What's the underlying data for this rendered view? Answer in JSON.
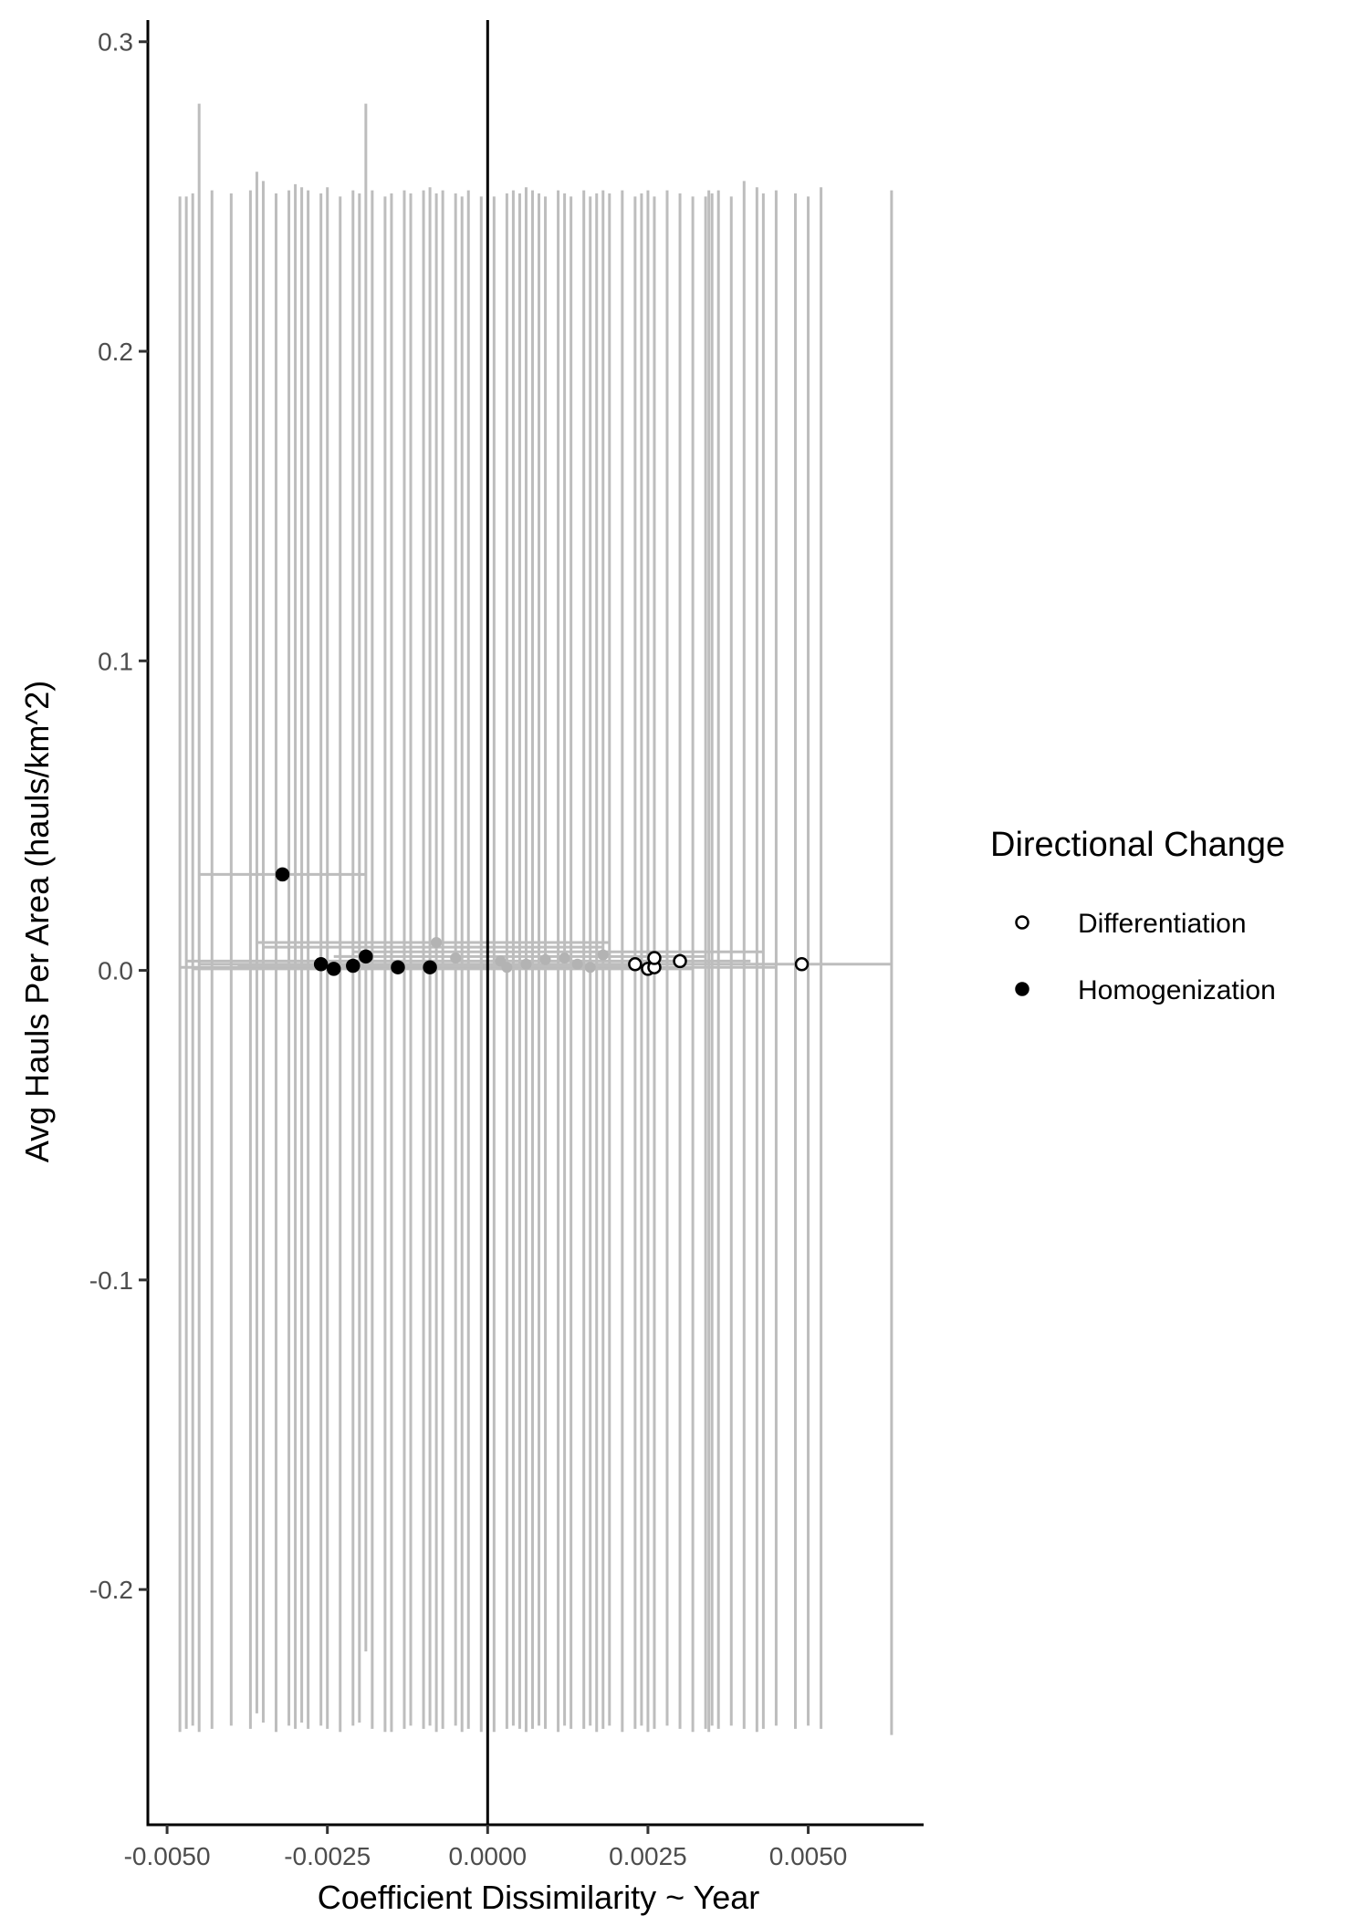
{
  "chart_data": {
    "type": "scatter",
    "xlabel": "Coefficient Dissimilarity ~ Year",
    "ylabel": "Avg Hauls Per Area (hauls/km^2)",
    "xlim": [
      -0.0053,
      0.0068
    ],
    "ylim": [
      -0.276,
      0.307
    ],
    "x_ticks": [
      -0.005,
      -0.0025,
      0.0,
      0.0025,
      0.005
    ],
    "x_tick_labels": [
      "-0.0050",
      "-0.0025",
      "0.0000",
      "0.0025",
      "0.0050"
    ],
    "y_ticks": [
      -0.2,
      -0.1,
      0.0,
      0.1,
      0.2,
      0.3
    ],
    "y_tick_labels": [
      "-0.2",
      "-0.1",
      "0.0",
      "0.1",
      "0.2",
      "0.3"
    ],
    "vline_x": 0.0,
    "legend": {
      "title": "Directional Change",
      "placement": "right",
      "entries": [
        {
          "label": "Differentiation",
          "fill": "#ffffff"
        },
        {
          "label": "Homogenization",
          "fill": "#000000"
        }
      ]
    },
    "colors": {
      "errorbar": "#bdbdbd",
      "gray_point": "#b3b3b3",
      "axis": "#000000"
    },
    "series": [
      {
        "name": "Homogenization",
        "points": [
          {
            "x": -0.0032,
            "y": 0.031
          },
          {
            "x": -0.0026,
            "y": 0.002
          },
          {
            "x": -0.0024,
            "y": 0.0005
          },
          {
            "x": -0.0021,
            "y": 0.0015
          },
          {
            "x": -0.0019,
            "y": 0.0045
          },
          {
            "x": -0.0014,
            "y": 0.001
          },
          {
            "x": -0.0009,
            "y": 0.001
          }
        ]
      },
      {
        "name": "Differentiation",
        "points": [
          {
            "x": 0.0023,
            "y": 0.002
          },
          {
            "x": 0.0025,
            "y": 0.0005
          },
          {
            "x": 0.0026,
            "y": 0.001
          },
          {
            "x": 0.0026,
            "y": 0.004
          },
          {
            "x": 0.003,
            "y": 0.003
          },
          {
            "x": 0.0049,
            "y": 0.002
          }
        ]
      }
    ],
    "error_bars": {
      "vertical": [
        {
          "x": -0.0048,
          "ymin": -0.246,
          "ymax": 0.25
        },
        {
          "x": -0.0047,
          "ymin": -0.245,
          "ymax": 0.25
        },
        {
          "x": -0.0046,
          "ymin": -0.244,
          "ymax": 0.251
        },
        {
          "x": -0.0045,
          "ymin": -0.246,
          "ymax": 0.28
        },
        {
          "x": -0.0043,
          "ymin": -0.245,
          "ymax": 0.252
        },
        {
          "x": -0.004,
          "ymin": -0.244,
          "ymax": 0.251
        },
        {
          "x": -0.0037,
          "ymin": -0.245,
          "ymax": 0.252
        },
        {
          "x": -0.0036,
          "ymin": -0.24,
          "ymax": 0.258
        },
        {
          "x": -0.0035,
          "ymin": -0.243,
          "ymax": 0.255
        },
        {
          "x": -0.0033,
          "ymin": -0.246,
          "ymax": 0.251
        },
        {
          "x": -0.0031,
          "ymin": -0.244,
          "ymax": 0.252
        },
        {
          "x": -0.003,
          "ymin": -0.245,
          "ymax": 0.254
        },
        {
          "x": -0.0029,
          "ymin": -0.243,
          "ymax": 0.253
        },
        {
          "x": -0.0028,
          "ymin": -0.245,
          "ymax": 0.252
        },
        {
          "x": -0.0026,
          "ymin": -0.244,
          "ymax": 0.251
        },
        {
          "x": -0.0025,
          "ymin": -0.245,
          "ymax": 0.253
        },
        {
          "x": -0.0023,
          "ymin": -0.246,
          "ymax": 0.25
        },
        {
          "x": -0.0021,
          "ymin": -0.244,
          "ymax": 0.252
        },
        {
          "x": -0.002,
          "ymin": -0.243,
          "ymax": 0.251
        },
        {
          "x": -0.0019,
          "ymin": -0.22,
          "ymax": 0.28
        },
        {
          "x": -0.0018,
          "ymin": -0.245,
          "ymax": 0.252
        },
        {
          "x": -0.0016,
          "ymin": -0.246,
          "ymax": 0.25
        },
        {
          "x": -0.0015,
          "ymin": -0.246,
          "ymax": 0.251
        },
        {
          "x": -0.0013,
          "ymin": -0.245,
          "ymax": 0.252
        },
        {
          "x": -0.0012,
          "ymin": -0.244,
          "ymax": 0.251
        },
        {
          "x": -0.001,
          "ymin": -0.245,
          "ymax": 0.252
        },
        {
          "x": -0.0009,
          "ymin": -0.244,
          "ymax": 0.253
        },
        {
          "x": -0.0008,
          "ymin": -0.246,
          "ymax": 0.251
        },
        {
          "x": -0.0007,
          "ymin": -0.245,
          "ymax": 0.252
        },
        {
          "x": -0.0005,
          "ymin": -0.244,
          "ymax": 0.251
        },
        {
          "x": -0.0004,
          "ymin": -0.246,
          "ymax": 0.25
        },
        {
          "x": -0.0003,
          "ymin": -0.245,
          "ymax": 0.252
        },
        {
          "x": -0.0001,
          "ymin": -0.246,
          "ymax": 0.25
        },
        {
          "x": 0.0001,
          "ymin": -0.246,
          "ymax": 0.25
        },
        {
          "x": 0.0003,
          "ymin": -0.245,
          "ymax": 0.251
        },
        {
          "x": 0.0004,
          "ymin": -0.244,
          "ymax": 0.252
        },
        {
          "x": 0.0005,
          "ymin": -0.245,
          "ymax": 0.251
        },
        {
          "x": 0.0006,
          "ymin": -0.246,
          "ymax": 0.253
        },
        {
          "x": 0.0007,
          "ymin": -0.245,
          "ymax": 0.252
        },
        {
          "x": 0.0008,
          "ymin": -0.244,
          "ymax": 0.251
        },
        {
          "x": 0.0009,
          "ymin": -0.245,
          "ymax": 0.25
        },
        {
          "x": 0.0011,
          "ymin": -0.246,
          "ymax": 0.252
        },
        {
          "x": 0.0012,
          "ymin": -0.244,
          "ymax": 0.251
        },
        {
          "x": 0.0013,
          "ymin": -0.245,
          "ymax": 0.25
        },
        {
          "x": 0.0015,
          "ymin": -0.245,
          "ymax": 0.252
        },
        {
          "x": 0.0016,
          "ymin": -0.244,
          "ymax": 0.25
        },
        {
          "x": 0.0017,
          "ymin": -0.246,
          "ymax": 0.251
        },
        {
          "x": 0.0018,
          "ymin": -0.245,
          "ymax": 0.252
        },
        {
          "x": 0.0019,
          "ymin": -0.244,
          "ymax": 0.251
        },
        {
          "x": 0.0021,
          "ymin": -0.246,
          "ymax": 0.252
        },
        {
          "x": 0.0023,
          "ymin": -0.245,
          "ymax": 0.25
        },
        {
          "x": 0.0024,
          "ymin": -0.244,
          "ymax": 0.251
        },
        {
          "x": 0.0025,
          "ymin": -0.246,
          "ymax": 0.252
        },
        {
          "x": 0.0026,
          "ymin": -0.245,
          "ymax": 0.25
        },
        {
          "x": 0.0028,
          "ymin": -0.244,
          "ymax": 0.252
        },
        {
          "x": 0.003,
          "ymin": -0.245,
          "ymax": 0.251
        },
        {
          "x": 0.0032,
          "ymin": -0.246,
          "ymax": 0.25
        },
        {
          "x": 0.0034,
          "ymin": -0.245,
          "ymax": 0.25
        },
        {
          "x": 0.00345,
          "ymin": -0.246,
          "ymax": 0.252
        },
        {
          "x": 0.0035,
          "ymin": -0.244,
          "ymax": 0.251
        },
        {
          "x": 0.0036,
          "ymin": -0.245,
          "ymax": 0.252
        },
        {
          "x": 0.0038,
          "ymin": -0.244,
          "ymax": 0.25
        },
        {
          "x": 0.004,
          "ymin": -0.245,
          "ymax": 0.255
        },
        {
          "x": 0.0042,
          "ymin": -0.246,
          "ymax": 0.253
        },
        {
          "x": 0.0043,
          "ymin": -0.245,
          "ymax": 0.251
        },
        {
          "x": 0.0045,
          "ymin": -0.244,
          "ymax": 0.252
        },
        {
          "x": 0.0048,
          "ymin": -0.245,
          "ymax": 0.251
        },
        {
          "x": 0.005,
          "ymin": -0.244,
          "ymax": 0.25
        },
        {
          "x": 0.0052,
          "ymin": -0.245,
          "ymax": 0.253
        },
        {
          "x": 0.0063,
          "ymin": -0.247,
          "ymax": 0.252
        }
      ],
      "horizontal": [
        {
          "y": 0.031,
          "xmin": -0.0045,
          "xmax": -0.0019
        },
        {
          "y": 0.009,
          "xmin": -0.0036,
          "xmax": 0.0019
        },
        {
          "y": 0.0075,
          "xmin": -0.0035,
          "xmax": 0.0018
        },
        {
          "y": 0.006,
          "xmin": -0.0021,
          "xmax": 0.0043
        },
        {
          "y": 0.0045,
          "xmin": -0.0024,
          "xmax": 0.0034
        },
        {
          "y": 0.003,
          "xmin": -0.0047,
          "xmax": 0.0041
        },
        {
          "y": 0.002,
          "xmin": -0.0045,
          "xmax": 0.0063
        },
        {
          "y": 0.0015,
          "xmin": -0.0039,
          "xmax": 0.0026
        },
        {
          "y": 0.001,
          "xmin": -0.0048,
          "xmax": 0.0045
        },
        {
          "y": 0.0005,
          "xmin": -0.0046,
          "xmax": 0.0032
        }
      ]
    },
    "gray_points": [
      {
        "x": -0.0008,
        "y": 0.009
      },
      {
        "x": -0.0005,
        "y": 0.004
      },
      {
        "x": 0.0002,
        "y": 0.003
      },
      {
        "x": 0.0003,
        "y": 0.001
      },
      {
        "x": 0.0006,
        "y": 0.002
      },
      {
        "x": 0.0009,
        "y": 0.0035
      },
      {
        "x": 0.0012,
        "y": 0.004
      },
      {
        "x": 0.0014,
        "y": 0.002
      },
      {
        "x": 0.0016,
        "y": 0.001
      },
      {
        "x": 0.0018,
        "y": 0.005
      }
    ]
  }
}
